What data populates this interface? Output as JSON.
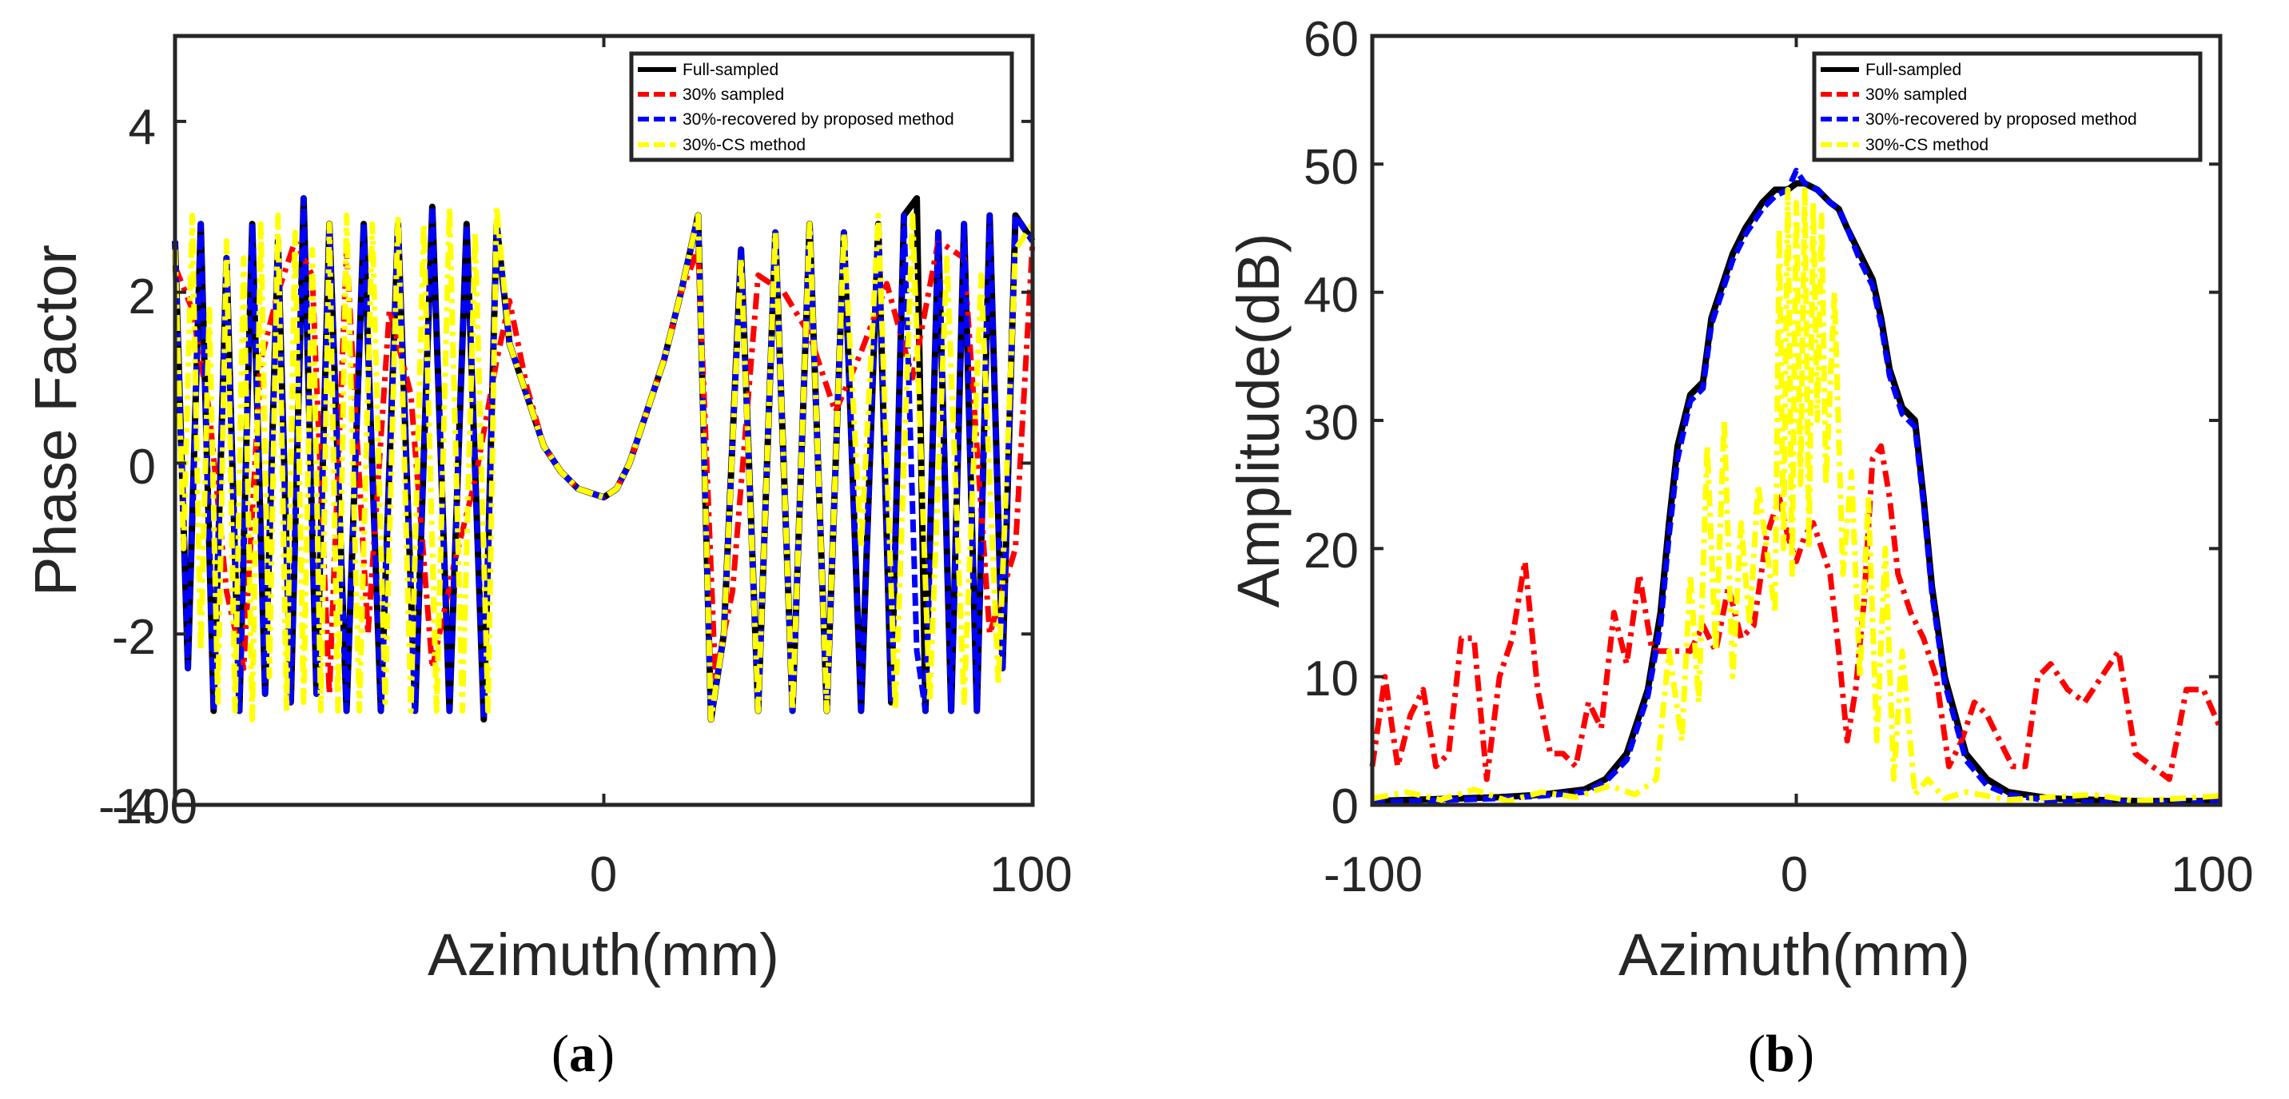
{
  "chart_data": [
    {
      "type": "line",
      "caption": "a",
      "xlabel": "Azimuth(mm)",
      "ylabel": "Phase Factor",
      "xlim": [
        -100,
        100
      ],
      "ylim": [
        -4,
        5
      ],
      "xticks": [
        "-100",
        "0",
        "100"
      ],
      "yticks": [
        "-4",
        "-2",
        "0",
        "2",
        "4"
      ],
      "legend_position": "top-right",
      "series": [
        {
          "name": "Full-sampled",
          "color": "#000000",
          "style": "solid",
          "x": [
            -100,
            -97,
            -94,
            -91,
            -88,
            -85,
            -82,
            -79,
            -76,
            -73,
            -70,
            -67,
            -64,
            -60,
            -56,
            -52,
            -48,
            -44,
            -40,
            -36,
            -32,
            -28,
            -25,
            -22,
            -18,
            -14,
            -10,
            -6,
            -3,
            0,
            3,
            6,
            10,
            14,
            18,
            22,
            25,
            28,
            32,
            36,
            40,
            44,
            48,
            52,
            56,
            60,
            64,
            67,
            70,
            73,
            75,
            78,
            81,
            84,
            87,
            90,
            93,
            96,
            100
          ],
          "values": [
            2.6,
            -2.4,
            2.8,
            -2.9,
            2.4,
            -2.9,
            2.8,
            -2.7,
            2.6,
            -2.8,
            3.1,
            -2.7,
            2.8,
            -2.9,
            2.8,
            -2.9,
            2.8,
            -2.9,
            3.0,
            -2.9,
            2.8,
            -3.0,
            2.8,
            1.4,
            0.8,
            0.2,
            -0.1,
            -0.3,
            -0.35,
            -0.4,
            -0.3,
            0.0,
            0.6,
            1.2,
            2.0,
            2.9,
            -3.0,
            -2.0,
            2.5,
            -2.9,
            2.7,
            -2.9,
            2.8,
            -2.9,
            2.7,
            -2.9,
            2.8,
            -2.8,
            2.9,
            3.1,
            -2.9,
            2.7,
            -2.9,
            2.8,
            -2.9,
            2.9,
            -2.4,
            2.9,
            2.6
          ]
        },
        {
          "name": "30% sampled",
          "color": "#ff0000",
          "style": "dashdot",
          "x": [
            -100,
            -96,
            -92,
            -88,
            -84,
            -80,
            -76,
            -72,
            -68,
            -64,
            -60,
            -55,
            -50,
            -45,
            -40,
            -35,
            -30,
            -25,
            -22,
            -18,
            -14,
            -10,
            -6,
            -3,
            0,
            3,
            6,
            10,
            14,
            18,
            22,
            26,
            30,
            36,
            42,
            48,
            54,
            60,
            66,
            72,
            78,
            84,
            90,
            96,
            100
          ],
          "values": [
            2.3,
            1.8,
            0.6,
            -1.5,
            -2.4,
            1.2,
            2.0,
            2.6,
            2.2,
            -2.7,
            2.5,
            -2.0,
            1.8,
            0.8,
            -2.4,
            -1.2,
            -0.2,
            1.2,
            1.9,
            0.9,
            0.2,
            -0.1,
            -0.3,
            -0.35,
            -0.4,
            -0.3,
            0.0,
            0.6,
            1.2,
            2.0,
            2.5,
            -2.5,
            -1.5,
            2.2,
            2.0,
            1.5,
            0.6,
            1.3,
            2.1,
            1.0,
            2.6,
            2.4,
            -2.0,
            -1.0,
            2.6
          ]
        },
        {
          "name": "30%-recovered by proposed method",
          "color": "#0000ff",
          "style": "dashed",
          "x": [
            -100,
            -97,
            -94,
            -91,
            -88,
            -85,
            -82,
            -79,
            -76,
            -73,
            -70,
            -67,
            -64,
            -60,
            -56,
            -52,
            -48,
            -44,
            -40,
            -36,
            -32,
            -28,
            -25,
            -22,
            -18,
            -14,
            -10,
            -6,
            -3,
            0,
            3,
            6,
            10,
            14,
            18,
            22,
            25,
            28,
            32,
            36,
            40,
            44,
            48,
            52,
            56,
            60,
            64,
            67,
            70,
            73,
            75,
            78,
            81,
            84,
            87,
            90,
            93,
            96,
            100
          ],
          "values": [
            2.6,
            -2.4,
            2.8,
            -2.9,
            2.4,
            -2.9,
            2.8,
            -2.7,
            2.6,
            -2.8,
            3.1,
            -2.7,
            2.8,
            -2.9,
            2.8,
            -2.9,
            2.8,
            -2.9,
            3.0,
            -2.9,
            2.8,
            -3.0,
            2.8,
            1.4,
            0.8,
            0.2,
            -0.1,
            -0.3,
            -0.35,
            -0.4,
            -0.3,
            0.0,
            0.6,
            1.2,
            2.0,
            2.9,
            -3.0,
            -2.0,
            2.5,
            -2.9,
            2.7,
            -2.9,
            2.8,
            -2.9,
            2.7,
            -2.9,
            2.8,
            -2.8,
            2.9,
            -2.2,
            -2.9,
            2.7,
            -2.9,
            2.8,
            -2.9,
            2.9,
            -2.4,
            2.9,
            2.6
          ]
        },
        {
          "name": "30%-CS method",
          "color": "#ffff00",
          "style": "dashdot",
          "x": [
            -100,
            -98,
            -96,
            -94,
            -92,
            -90,
            -88,
            -86,
            -84,
            -82,
            -80,
            -78,
            -76,
            -74,
            -72,
            -70,
            -68,
            -66,
            -64,
            -62,
            -60,
            -57,
            -54,
            -51,
            -48,
            -45,
            -42,
            -39,
            -36,
            -33,
            -30,
            -27,
            -25,
            -22,
            -18,
            -14,
            -10,
            -6,
            -3,
            0,
            3,
            6,
            10,
            14,
            18,
            22,
            25,
            28,
            32,
            36,
            40,
            44,
            48,
            52,
            56,
            60,
            64,
            68,
            72,
            76,
            80,
            84,
            88,
            92,
            96,
            100
          ],
          "values": [
            2.5,
            -1.0,
            2.9,
            -2.2,
            1.8,
            -2.8,
            2.6,
            -2.9,
            2.4,
            -3.0,
            2.8,
            -2.5,
            2.9,
            -2.9,
            2.7,
            -2.8,
            2.5,
            -2.9,
            2.8,
            -2.9,
            2.9,
            -2.9,
            2.8,
            -2.8,
            2.9,
            -2.9,
            2.8,
            -2.9,
            3.0,
            -2.9,
            2.7,
            -2.9,
            3.0,
            1.4,
            0.8,
            0.2,
            -0.1,
            -0.3,
            -0.35,
            -0.4,
            -0.3,
            0.0,
            0.6,
            1.2,
            2.0,
            2.9,
            -3.0,
            -2.0,
            2.4,
            -2.9,
            2.7,
            -2.9,
            2.8,
            -2.9,
            2.7,
            -1.0,
            2.9,
            -2.9,
            2.9,
            -2.8,
            2.4,
            -2.8,
            2.2,
            -2.6,
            2.5,
            2.8
          ]
        }
      ]
    },
    {
      "type": "line",
      "caption": "b",
      "xlabel": "Azimuth(mm)",
      "ylabel": "Amplitude(dB)",
      "xlim": [
        -100,
        100
      ],
      "ylim": [
        0,
        60
      ],
      "xticks": [
        "-100",
        "0",
        "100"
      ],
      "yticks": [
        "0",
        "10",
        "20",
        "30",
        "40",
        "50",
        "60"
      ],
      "legend_position": "top-right",
      "series": [
        {
          "name": "Full-sampled",
          "color": "#000000",
          "style": "solid",
          "x": [
            -100,
            -90,
            -80,
            -70,
            -60,
            -50,
            -45,
            -40,
            -35,
            -32,
            -30,
            -28,
            -25,
            -22,
            -20,
            -18,
            -15,
            -12,
            -10,
            -8,
            -5,
            -2,
            0,
            2,
            5,
            8,
            10,
            12,
            15,
            18,
            20,
            22,
            25,
            28,
            30,
            32,
            35,
            40,
            45,
            50,
            60,
            70,
            80,
            90,
            100
          ],
          "values": [
            0.3,
            0.4,
            0.5,
            0.6,
            0.8,
            1.2,
            2.0,
            4.0,
            9.0,
            15.0,
            22.0,
            28.0,
            32.0,
            33.0,
            38.0,
            40.0,
            43.0,
            45.0,
            46.0,
            47.0,
            48.0,
            48.0,
            48.5,
            48.5,
            48.0,
            47.0,
            46.5,
            45.0,
            43.0,
            41.0,
            38.0,
            34.0,
            31.0,
            30.0,
            24.0,
            17.0,
            10.0,
            4.0,
            2.0,
            1.0,
            0.5,
            0.4,
            0.3,
            0.3,
            0.3
          ]
        },
        {
          "name": "30% sampled",
          "color": "#ff0000",
          "style": "dashdot",
          "x": [
            -100,
            -97,
            -94,
            -91,
            -88,
            -85,
            -82,
            -79,
            -76,
            -73,
            -70,
            -67,
            -64,
            -61,
            -58,
            -55,
            -52,
            -49,
            -46,
            -43,
            -40,
            -37,
            -34,
            -31,
            -28,
            -25,
            -22,
            -19,
            -16,
            -13,
            -10,
            -7,
            -4,
            -2,
            0,
            2,
            4,
            6,
            8,
            10,
            12,
            14,
            16,
            18,
            20,
            22,
            24,
            27,
            30,
            33,
            36,
            39,
            42,
            45,
            48,
            51,
            54,
            57,
            60,
            64,
            68,
            72,
            76,
            80,
            84,
            88,
            92,
            96,
            100
          ],
          "values": [
            3,
            10,
            3,
            7,
            9,
            3,
            4,
            13,
            13,
            2,
            10,
            13,
            19,
            9,
            4,
            4,
            3,
            8,
            6,
            15,
            11,
            18,
            12,
            12,
            12,
            12,
            14,
            12,
            17,
            13,
            14,
            21,
            24,
            21,
            19,
            21,
            22,
            20,
            18,
            12,
            5,
            9,
            16,
            27,
            28,
            24,
            18,
            15,
            13,
            10,
            3,
            5,
            8,
            7,
            5,
            3,
            3,
            10,
            11,
            9,
            8,
            10,
            12,
            4,
            3,
            2,
            9,
            9,
            6
          ]
        },
        {
          "name": "30%-recovered by proposed method",
          "color": "#0000ff",
          "style": "dashed",
          "x": [
            -100,
            -90,
            -80,
            -70,
            -60,
            -50,
            -45,
            -40,
            -35,
            -32,
            -30,
            -28,
            -25,
            -22,
            -20,
            -18,
            -15,
            -12,
            -10,
            -8,
            -5,
            -2,
            0,
            2,
            5,
            8,
            10,
            12,
            15,
            18,
            20,
            22,
            25,
            28,
            30,
            32,
            35,
            40,
            45,
            50,
            60,
            70,
            80,
            90,
            100
          ],
          "values": [
            0.2,
            0.3,
            0.4,
            0.5,
            0.7,
            1.0,
            1.8,
            3.5,
            8.5,
            14.0,
            21.0,
            27.0,
            31.5,
            32.5,
            37.5,
            39.5,
            42.5,
            44.5,
            45.5,
            46.5,
            47.5,
            48.0,
            49.5,
            48.5,
            48.0,
            47.0,
            46.5,
            45.0,
            42.5,
            40.5,
            37.5,
            33.5,
            30.5,
            29.5,
            23.5,
            16.5,
            9.5,
            3.5,
            1.5,
            0.8,
            0.3,
            0.2,
            0.2,
            0.2,
            0.2
          ]
        },
        {
          "name": "30%-CS method",
          "color": "#ffff00",
          "style": "dashdot",
          "x": [
            -100,
            -92,
            -84,
            -76,
            -68,
            -60,
            -52,
            -44,
            -38,
            -33,
            -30,
            -27,
            -25,
            -23,
            -21,
            -19,
            -17,
            -15,
            -13,
            -11,
            -9,
            -7,
            -5,
            -4,
            -3,
            -2,
            -1,
            0,
            1,
            2,
            3,
            4,
            5,
            6,
            7,
            9,
            11,
            13,
            15,
            17,
            19,
            21,
            23,
            25,
            28,
            31,
            35,
            40,
            50,
            60,
            70,
            80,
            90,
            100
          ],
          "values": [
            0.5,
            1.0,
            0.4,
            1.2,
            0.3,
            1.0,
            0.6,
            1.5,
            0.8,
            2.0,
            12.0,
            5.0,
            18.0,
            8.0,
            28.0,
            12.0,
            30.0,
            10.0,
            22.0,
            14.0,
            25.0,
            20.0,
            15.0,
            45.0,
            20.0,
            48.0,
            18.0,
            47.0,
            25.0,
            48.0,
            20.0,
            47.0,
            30.0,
            46.0,
            25.0,
            40.0,
            18.0,
            26.0,
            10.0,
            24.0,
            5.0,
            20.0,
            2.0,
            12.0,
            0.8,
            2.0,
            0.5,
            1.0,
            0.4,
            0.6,
            0.8,
            0.3,
            0.5,
            0.7
          ]
        }
      ]
    }
  ]
}
